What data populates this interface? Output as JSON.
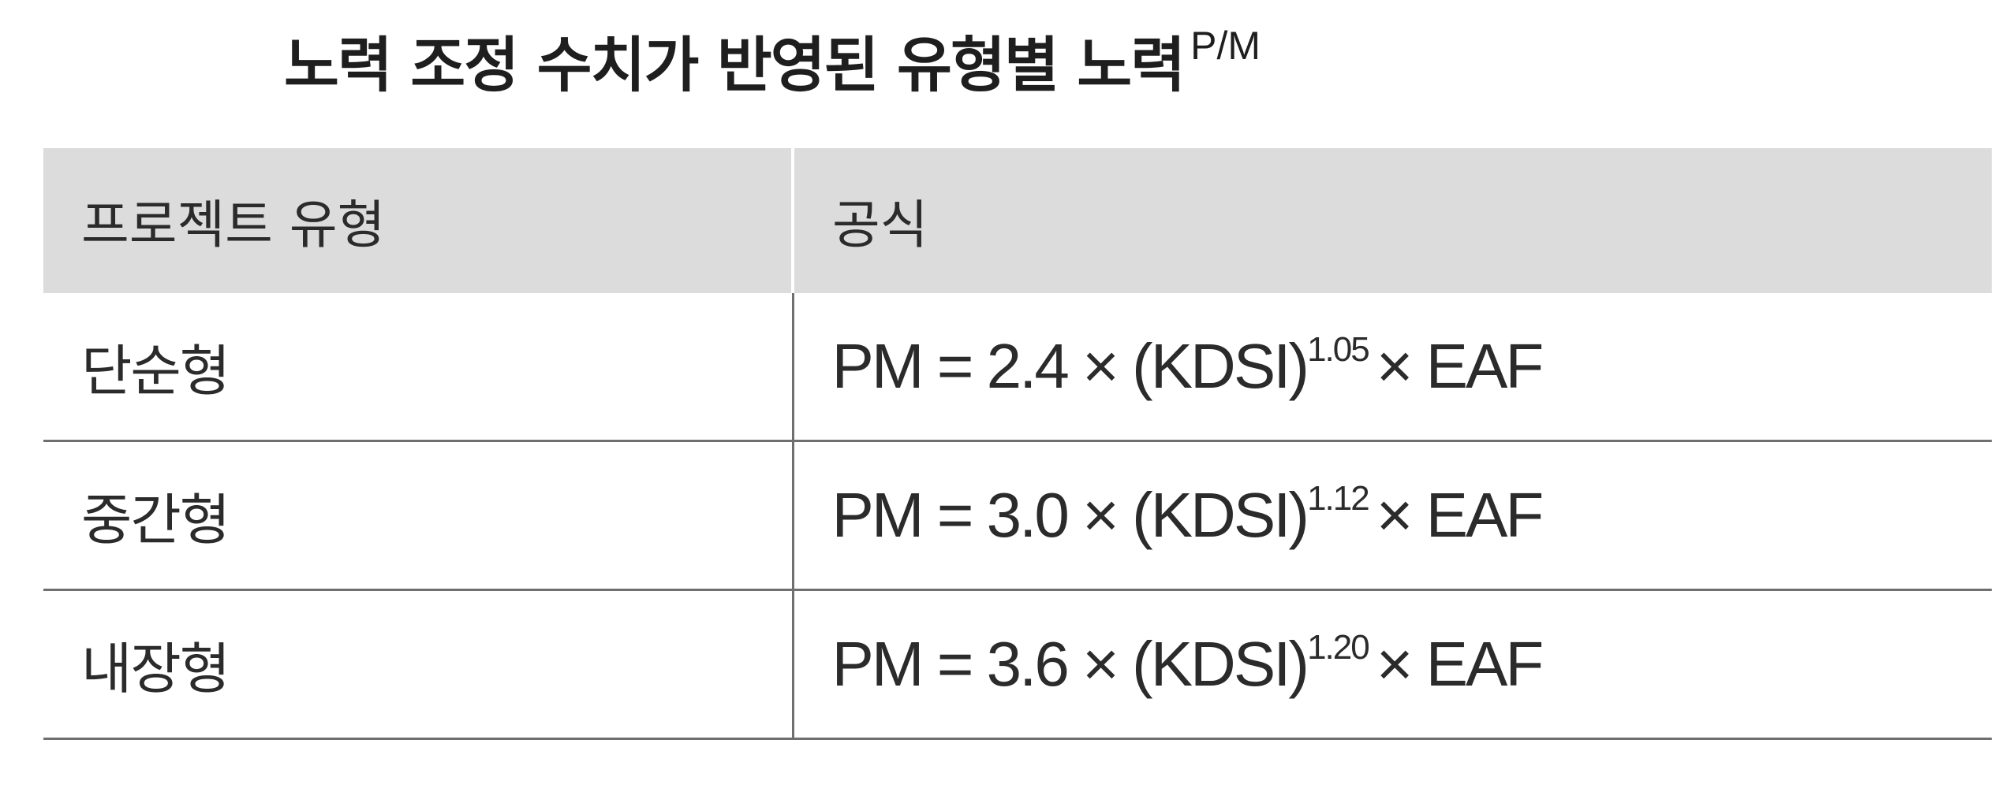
{
  "title": {
    "text": "노력 조정 수치가 반영된 유형별 노력",
    "superscript": "P/M"
  },
  "table": {
    "headers": [
      "프로젝트 유형",
      "공식"
    ],
    "rows": [
      {
        "type": "단순형",
        "formula_prefix": "PM = 2.4 × (KDSI)",
        "exponent": "1.05",
        "formula_suffix": "× EAF"
      },
      {
        "type": "중간형",
        "formula_prefix": "PM = 3.0 × (KDSI)",
        "exponent": "1.12",
        "formula_suffix": "× EAF"
      },
      {
        "type": "내장형",
        "formula_prefix": "PM = 3.6 × (KDSI)",
        "exponent": "1.20",
        "formula_suffix": "× EAF"
      }
    ]
  },
  "highlight_color": "#f6f38a"
}
